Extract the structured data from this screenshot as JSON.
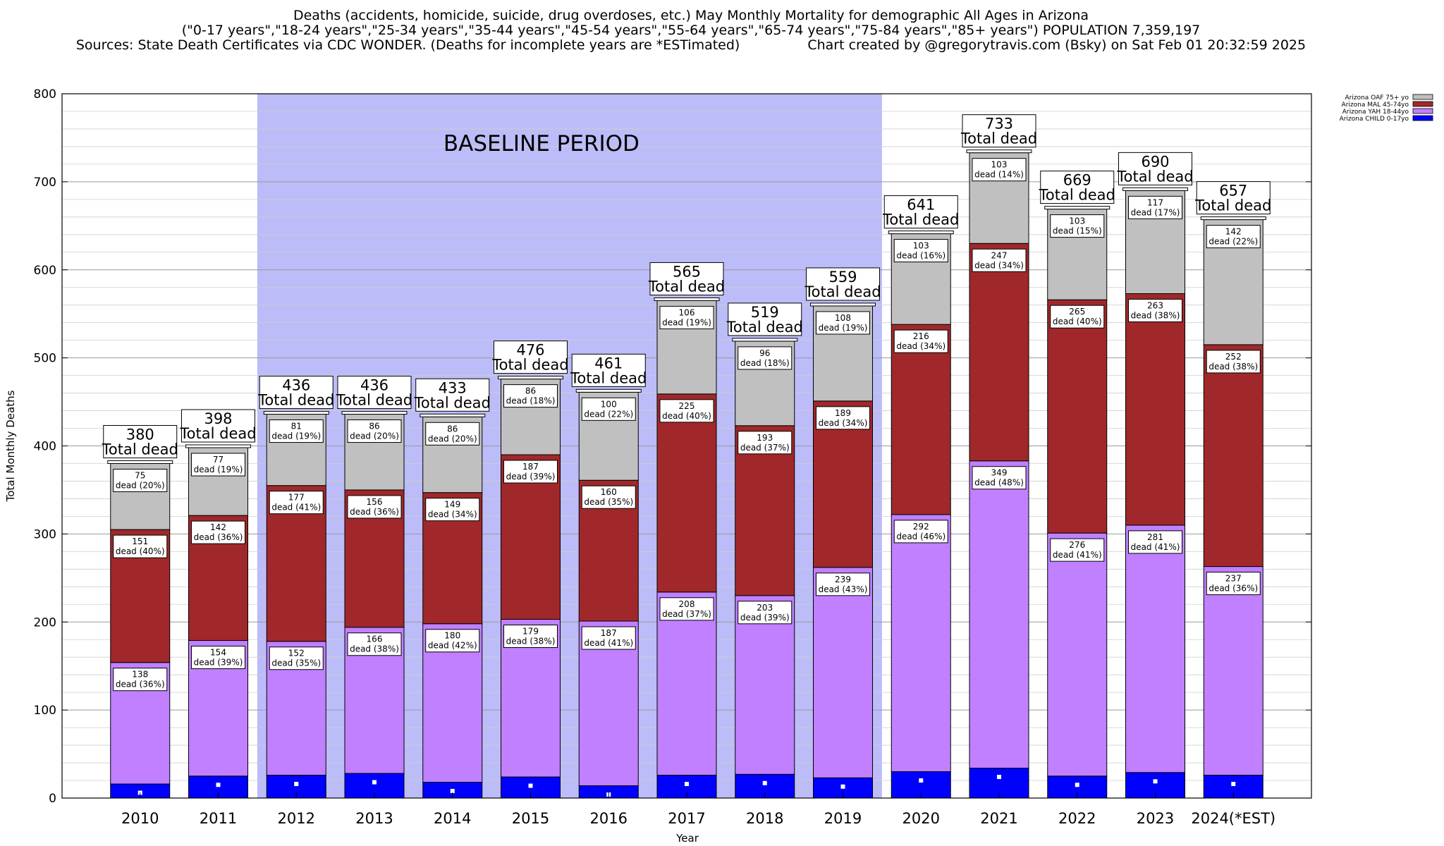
{
  "header": {
    "title": "Deaths (accidents, homicide, suicide, drug overdoses, etc.) May Monthly Mortality for demographic All Ages in Arizona",
    "subtitle": "(\"0-17 years\",\"18-24 years\",\"25-34 years\",\"35-44 years\",\"45-54 years\",\"55-64 years\",\"65-74 years\",\"75-84 years\",\"85+ years\") POPULATION 7,359,197",
    "sources": "Sources: State Death Certificates via CDC WONDER. (Deaths for incomplete years are *ESTimated)",
    "credit": "Chart created by @gregorytravis.com (Bsky) on Sat Feb 01 20:32:59 2025"
  },
  "chart_data": {
    "type": "bar",
    "stacked": true,
    "xlabel": "Year",
    "ylabel": "Total Monthly Deaths",
    "ylim": [
      0,
      800
    ],
    "yticks": [
      0,
      100,
      200,
      300,
      400,
      500,
      600,
      700,
      800
    ],
    "grid": true,
    "legend_position": "top-right",
    "shaded_region": {
      "label": "BASELINE PERIOD",
      "from": "2012",
      "to": "2019",
      "color": "#bcbcf8"
    },
    "total_label_suffix": "Total dead",
    "segment_label_prefix": "dead",
    "categories": [
      "2010",
      "2011",
      "2012",
      "2013",
      "2014",
      "2015",
      "2016",
      "2017",
      "2018",
      "2019",
      "2020",
      "2021",
      "2022",
      "2023",
      "2024(*EST)"
    ],
    "totals": [
      380,
      398,
      436,
      436,
      433,
      476,
      461,
      565,
      519,
      559,
      641,
      733,
      669,
      690,
      657
    ],
    "series": [
      {
        "name": "Arizona CHILD 0-17yo",
        "color": "#0000ff",
        "values": [
          16,
          25,
          26,
          28,
          18,
          24,
          14,
          26,
          27,
          23,
          30,
          34,
          25,
          29,
          26
        ],
        "marker_values": [
          6,
          15,
          16,
          18,
          8,
          14,
          4,
          16,
          17,
          13,
          20,
          24,
          15,
          19,
          16
        ]
      },
      {
        "name": "Arizona YAH 18-44yo",
        "color": "#c080ff",
        "values": [
          138,
          154,
          152,
          166,
          180,
          179,
          187,
          208,
          203,
          239,
          292,
          349,
          276,
          281,
          237
        ],
        "percents": [
          "36%",
          "39%",
          "35%",
          "38%",
          "42%",
          "38%",
          "41%",
          "37%",
          "39%",
          "43%",
          "46%",
          "48%",
          "41%",
          "41%",
          "36%"
        ]
      },
      {
        "name": "Arizona MAL 45-74yo",
        "color": "#a0282a",
        "values": [
          151,
          142,
          177,
          156,
          149,
          187,
          160,
          225,
          193,
          189,
          216,
          247,
          265,
          263,
          252
        ],
        "percents": [
          "40%",
          "36%",
          "41%",
          "36%",
          "34%",
          "39%",
          "35%",
          "40%",
          "37%",
          "34%",
          "34%",
          "34%",
          "40%",
          "38%",
          "38%"
        ]
      },
      {
        "name": "Arizona OAF 75+ yo",
        "color": "#c0c0c0",
        "values": [
          75,
          77,
          81,
          86,
          86,
          86,
          100,
          106,
          96,
          108,
          103,
          103,
          103,
          117,
          142
        ],
        "percents": [
          "20%",
          "19%",
          "19%",
          "20%",
          "20%",
          "18%",
          "22%",
          "19%",
          "18%",
          "19%",
          "16%",
          "14%",
          "15%",
          "17%",
          "22%"
        ]
      }
    ]
  }
}
